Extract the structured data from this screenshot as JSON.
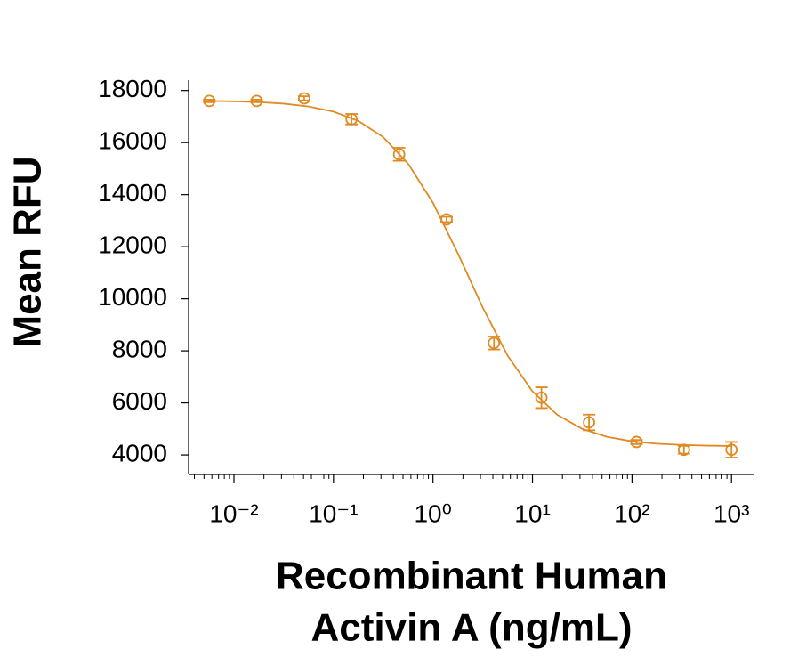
{
  "chart_data": {
    "type": "scatter",
    "ylabel": "Mean RFU",
    "xlabel": [
      "Recombinant Human",
      "Activin A (ng/mL)"
    ],
    "xscale": "log",
    "xlim": [
      0.0035,
      1700
    ],
    "ylim": [
      3250,
      18400
    ],
    "xticks": [
      {
        "value": 0.01,
        "label": "10⁻²"
      },
      {
        "value": 0.1,
        "label": "10⁻¹"
      },
      {
        "value": 1,
        "label": "10⁰"
      },
      {
        "value": 10,
        "label": "10¹"
      },
      {
        "value": 100,
        "label": "10²"
      },
      {
        "value": 1000,
        "label": "10³"
      }
    ],
    "xminorticks": [
      0.004,
      0.005,
      0.006,
      0.007,
      0.008,
      0.009,
      0.02,
      0.03,
      0.04,
      0.05,
      0.06,
      0.07,
      0.08,
      0.09,
      0.2,
      0.3,
      0.4,
      0.5,
      0.6,
      0.7,
      0.8,
      0.9,
      2,
      3,
      4,
      5,
      6,
      7,
      8,
      9,
      20,
      30,
      40,
      50,
      60,
      70,
      80,
      90,
      200,
      300,
      400,
      500,
      600,
      700,
      800,
      900
    ],
    "yticks": [
      4000,
      6000,
      8000,
      10000,
      12000,
      14000,
      16000,
      18000
    ],
    "series": [
      {
        "color": "#df8a23",
        "x": [
          0.00565,
          0.0169,
          0.0508,
          0.152,
          0.457,
          1.37,
          4.1,
          12.3,
          37,
          111,
          333,
          1000
        ],
        "values": [
          17600,
          17600,
          17700,
          16900,
          15550,
          13050,
          8300,
          6200,
          5250,
          4500,
          4200,
          4200
        ],
        "errors": [
          50,
          50,
          80,
          200,
          250,
          100,
          250,
          400,
          300,
          80,
          150,
          300
        ]
      }
    ],
    "fit": {
      "color": "#df8a23",
      "x": [
        0.005623,
        0.01,
        0.01778,
        0.03162,
        0.05623,
        0.1,
        0.1778,
        0.3162,
        0.5623,
        1,
        1.778,
        3.162,
        5.623,
        10,
        17.78,
        31.62,
        56.23,
        100,
        177.8,
        316.2,
        562.3,
        1000
      ],
      "values": [
        17601,
        17585,
        17554,
        17496,
        17388,
        17190,
        16832,
        16211,
        15193,
        13685,
        11744,
        9661,
        7817,
        6441,
        5541,
        5002,
        4695,
        4526,
        4435,
        4386,
        4360,
        4346
      ]
    }
  }
}
